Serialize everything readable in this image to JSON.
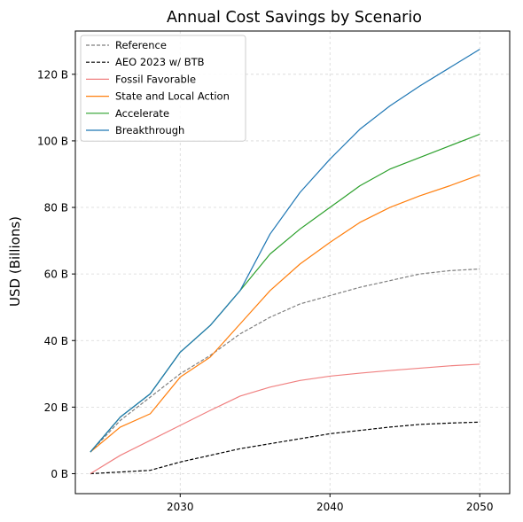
{
  "chart_data": {
    "type": "line",
    "title": "Annual Cost Savings by Scenario",
    "xlabel": "",
    "ylabel": "USD (Billions)",
    "xlim": [
      2023.0,
      2052.0
    ],
    "ylim": [
      -6,
      133
    ],
    "xticks": [
      2030,
      2040,
      2050
    ],
    "yticks": [
      0,
      20,
      40,
      60,
      80,
      100,
      120
    ],
    "ytick_suffix": " B",
    "grid": true,
    "legend_position": "top-left",
    "x": [
      2024,
      2026,
      2028,
      2030,
      2032,
      2034,
      2036,
      2038,
      2040,
      2042,
      2044,
      2046,
      2048,
      2050
    ],
    "series": [
      {
        "name": "Reference",
        "color": "#7f7f7f",
        "dash": "dashed",
        "values": [
          6.5,
          16.0,
          23.0,
          30.0,
          35.5,
          42.0,
          47.0,
          51.0,
          53.5,
          56.0,
          58.0,
          60.0,
          61.0,
          61.5
        ]
      },
      {
        "name": "AEO 2023 w/ BTB",
        "color": "#000000",
        "dash": "dashed",
        "values": [
          0.0,
          0.5,
          1.0,
          3.5,
          5.5,
          7.5,
          9.0,
          10.5,
          12.0,
          13.0,
          14.0,
          14.8,
          15.2,
          15.5
        ]
      },
      {
        "name": "Fossil Favorable",
        "color": "#f08080",
        "dash": "solid",
        "values": [
          0.0,
          5.5,
          10.0,
          14.5,
          19.0,
          23.3,
          26.0,
          28.0,
          29.3,
          30.2,
          31.0,
          31.7,
          32.4,
          32.9
        ]
      },
      {
        "name": "State and Local Action",
        "color": "#ff7f0e",
        "dash": "solid",
        "values": [
          6.5,
          14.0,
          18.0,
          29.0,
          35.0,
          45.0,
          55.0,
          63.0,
          69.5,
          75.5,
          80.0,
          83.5,
          86.5,
          89.8
        ]
      },
      {
        "name": "Accelerate",
        "color": "#2ca02c",
        "dash": "solid",
        "values": [
          6.5,
          17.0,
          24.0,
          36.5,
          44.5,
          55.0,
          66.0,
          73.5,
          80.0,
          86.5,
          91.5,
          95.0,
          98.5,
          102.0
        ]
      },
      {
        "name": "Breakthrough",
        "color": "#1f77b4",
        "dash": "solid",
        "values": [
          6.5,
          17.0,
          24.0,
          36.5,
          44.5,
          55.0,
          72.0,
          84.5,
          94.5,
          103.5,
          110.5,
          116.5,
          122.0,
          127.5
        ]
      }
    ]
  }
}
